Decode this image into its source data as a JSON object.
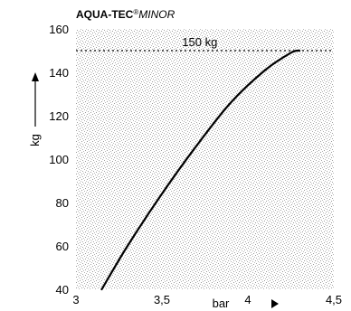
{
  "chart_data": {
    "type": "line",
    "title_bold": "AQUA-TEC",
    "title_super": "®",
    "title_italic": "MINOR",
    "xlabel": "bar",
    "ylabel": "kg",
    "xlim": [
      3,
      4.5
    ],
    "ylim": [
      40,
      160
    ],
    "x_ticks": [
      3,
      3.5,
      4,
      4.5
    ],
    "x_tick_labels": [
      "3",
      "3,5",
      "4",
      "4,5"
    ],
    "y_ticks": [
      40,
      60,
      80,
      100,
      120,
      140,
      160
    ],
    "y_tick_labels": [
      "40",
      "60",
      "80",
      "100",
      "120",
      "140",
      "160"
    ],
    "grid": false,
    "background": "stippled",
    "reference_line": {
      "y": 150,
      "label": "150 kg",
      "style": "dotted"
    },
    "series": [
      {
        "x": [
          3.15,
          3.3,
          3.5,
          3.7,
          3.9,
          4.1,
          4.25,
          4.3
        ],
        "y": [
          40,
          60,
          84,
          106,
          126,
          141,
          149,
          150
        ]
      }
    ],
    "colors": {
      "line": "#000000",
      "stipple": "#9a9a9a",
      "background": "#ffffff"
    }
  }
}
